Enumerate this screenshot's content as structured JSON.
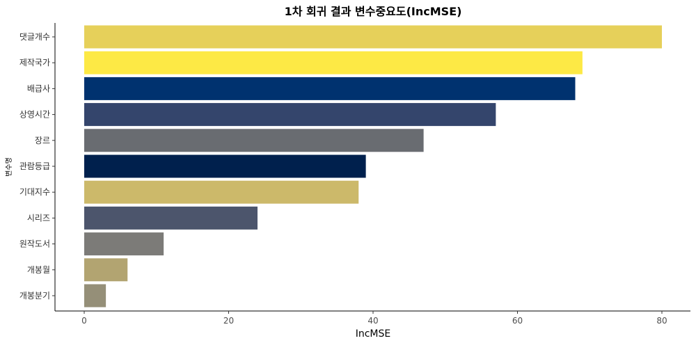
{
  "chart_data": {
    "type": "bar",
    "orientation": "horizontal",
    "title": "1차 회귀 결과 변수중요도(IncMSE)",
    "xlabel": "IncMSE",
    "ylabel": "변수명",
    "xlim": [
      0,
      83
    ],
    "x_ticks": [
      0,
      20,
      40,
      60,
      80
    ],
    "grid": false,
    "legend": "none",
    "categories": [
      "댓글개수",
      "제작국가",
      "배급사",
      "상영시간",
      "장르",
      "관람등급",
      "기대지수",
      "시리즈",
      "원작도서",
      "개봉월",
      "개봉분기"
    ],
    "values": [
      80,
      69,
      68,
      57,
      47,
      39,
      38,
      24,
      11,
      6,
      3
    ],
    "colors": [
      "#E6D05A",
      "#FDE945",
      "#00326F",
      "#34456C",
      "#696C71",
      "#00204D",
      "#CCB96A",
      "#4C556C",
      "#7C7B78",
      "#B2A471",
      "#958F78"
    ]
  }
}
